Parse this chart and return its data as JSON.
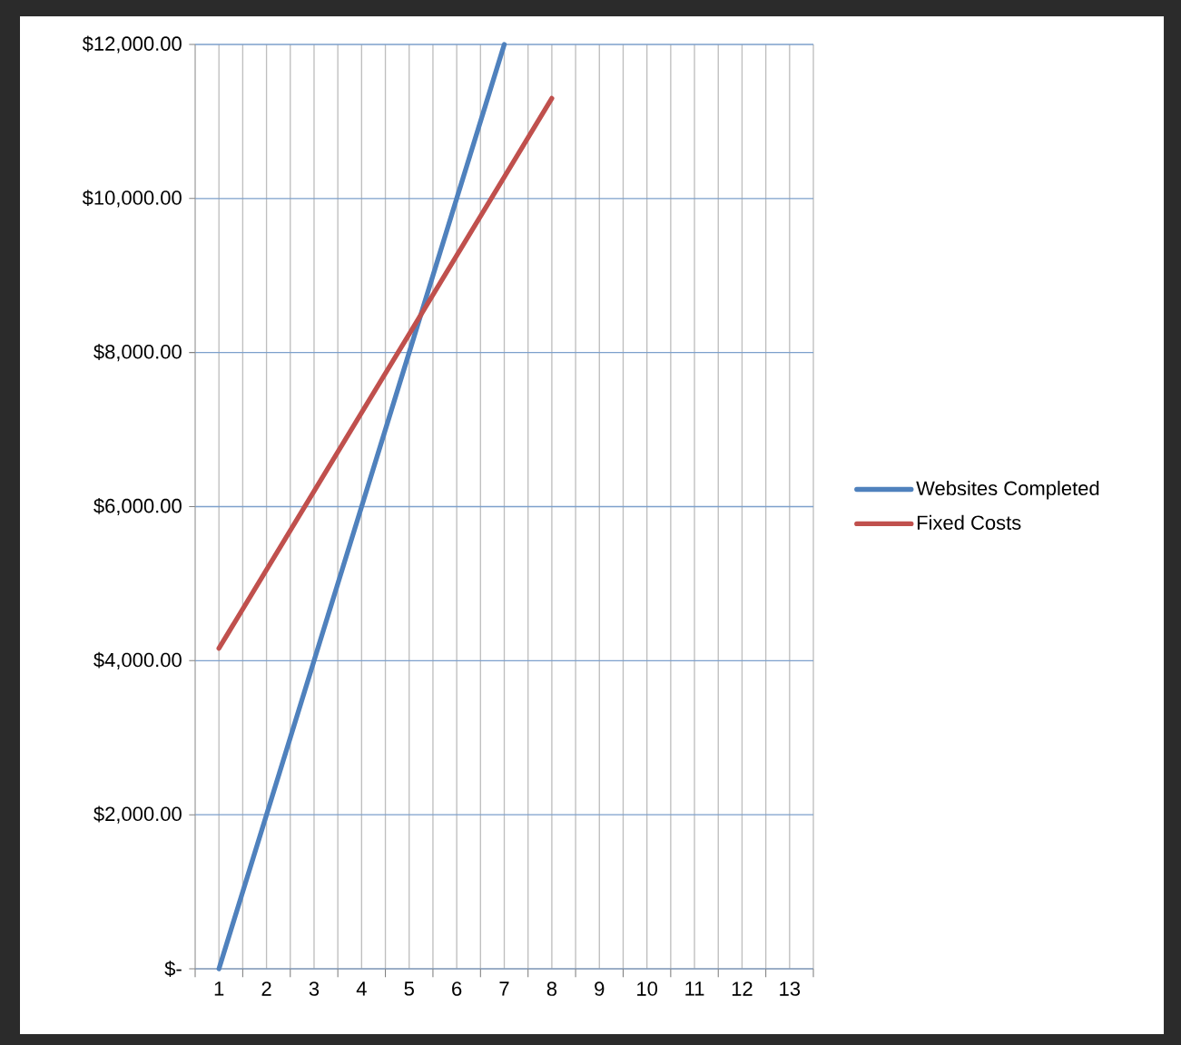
{
  "chart_data": {
    "type": "line",
    "categories": [
      "1",
      "2",
      "3",
      "4",
      "5",
      "6",
      "7",
      "8",
      "9",
      "10",
      "11",
      "12",
      "13"
    ],
    "series": [
      {
        "name": "Websites Completed",
        "color": "#4f81bd",
        "values": [
          0,
          2000,
          4000,
          6000,
          8000,
          10000,
          12000,
          null,
          null,
          null,
          null,
          null,
          null
        ]
      },
      {
        "name": "Fixed Costs",
        "color": "#c0504d",
        "values": [
          4160,
          5180,
          6200,
          7220,
          8240,
          9260,
          10280,
          11300,
          null,
          null,
          null,
          null,
          null
        ]
      }
    ],
    "ylim": [
      0,
      12000
    ],
    "yticks": [
      {
        "value": 0,
        "label": "$-"
      },
      {
        "value": 2000,
        "label": "$2,000.00"
      },
      {
        "value": 4000,
        "label": "$4,000.00"
      },
      {
        "value": 6000,
        "label": "$6,000.00"
      },
      {
        "value": 8000,
        "label": "$8,000.00"
      },
      {
        "value": 10000,
        "label": "$10,000.00"
      },
      {
        "value": 12000,
        "label": "$12,000.00"
      }
    ],
    "grid": true,
    "legend": "right",
    "marker": "none",
    "line_style": "solid"
  }
}
